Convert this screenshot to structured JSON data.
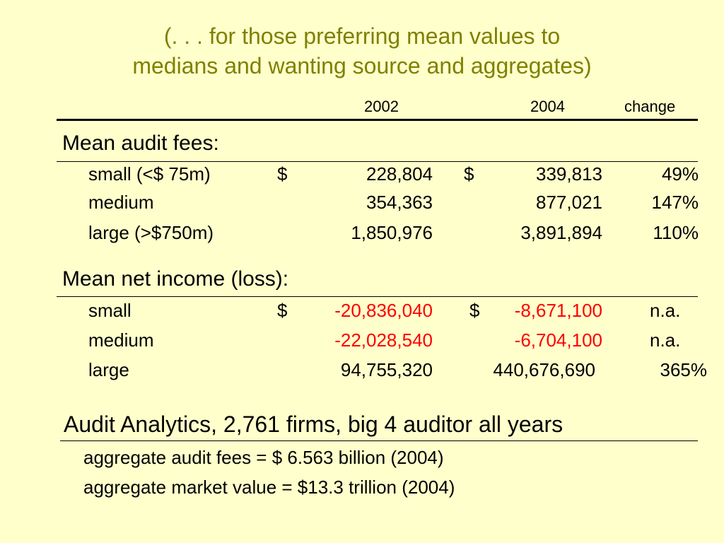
{
  "title": {
    "line1": "(. . . for those preferring mean values to",
    "line2": "medians and wanting source and aggregates)"
  },
  "header": {
    "col_2002": "2002",
    "col_2004": "2004",
    "col_change": "change"
  },
  "fees": {
    "heading": "Mean audit fees:",
    "rows": [
      {
        "label": "small (<$ 75m)",
        "dollar1": "$",
        "v2002": "228,804",
        "dollar2": "$",
        "v2004": "339,813",
        "change": "49%"
      },
      {
        "label": "medium",
        "v2002": "354,363",
        "v2004": "877,021",
        "change": "147%"
      },
      {
        "label": "large (>$750m)",
        "v2002": "1,850,976",
        "v2004": "3,891,894",
        "change": "110%"
      }
    ]
  },
  "income": {
    "heading": "Mean net income (loss):",
    "rows": [
      {
        "label": "small",
        "dollar1": "$",
        "v2002": "-20,836,040",
        "dollar2": "$",
        "v2004": "-8,671,100",
        "change": "n.a."
      },
      {
        "label": "medium",
        "v2002": "-22,028,540",
        "v2004": "-6,704,100",
        "change": "n.a."
      },
      {
        "label": "large",
        "v2002": "94,755,320",
        "v2004": "440,676,690",
        "change": "365%"
      }
    ]
  },
  "source": {
    "text": "Audit Analytics, 2,761 firms, big 4 auditor all years",
    "agg1": "aggregate audit fees = $ 6.563 billion (2004)",
    "agg2": "aggregate market value = $13.3 trillion (2004)"
  },
  "colors": {
    "title": "#808000",
    "negative": "#ff0000",
    "background": "#ffffcc"
  }
}
